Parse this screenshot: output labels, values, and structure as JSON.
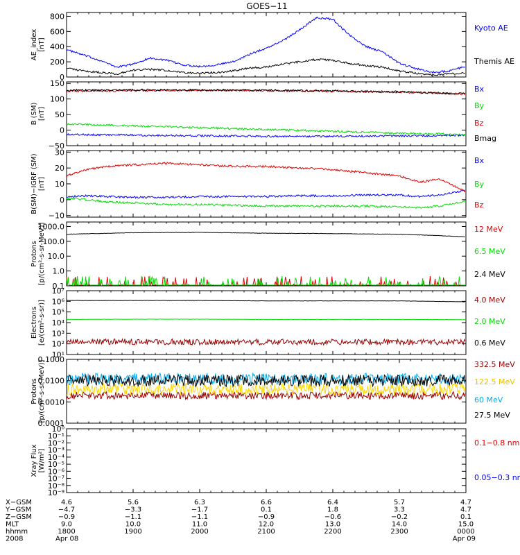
{
  "title": "GOES−11",
  "colors": {
    "black": "#000000",
    "blue": "#0000ff",
    "red": "#e00000",
    "green": "#00dd00",
    "darkred": "#990000",
    "cyan": "#00aaee",
    "yellow": "#ffd700"
  },
  "chart_data": [
    {
      "type": "line",
      "ylabel": [
        "AE_index",
        "[nT]"
      ],
      "ylim": [
        0,
        850
      ],
      "yticks": [
        {
          "v": 0,
          "l": "0"
        },
        {
          "v": 200,
          "l": "200"
        },
        {
          "v": 400,
          "l": "400"
        },
        {
          "v": 600,
          "l": "600"
        },
        {
          "v": 800,
          "l": "800"
        }
      ],
      "x": [
        0,
        0.25,
        0.5,
        0.75,
        1,
        1.25,
        1.5,
        1.75,
        2,
        2.25,
        2.5,
        2.75,
        3,
        3.25,
        3.5,
        3.75,
        4,
        4.25,
        4.5,
        4.75,
        5,
        5.25,
        5.5,
        5.75,
        6
      ],
      "series": [
        {
          "name": "Kyoto AE",
          "color": "blue",
          "values": [
            360,
            290,
            220,
            130,
            170,
            250,
            220,
            160,
            140,
            160,
            200,
            300,
            380,
            480,
            620,
            780,
            760,
            550,
            400,
            330,
            180,
            110,
            60,
            80,
            140
          ]
        },
        {
          "name": "Themis AE",
          "color": "black",
          "values": [
            120,
            80,
            60,
            40,
            90,
            100,
            90,
            60,
            50,
            60,
            80,
            120,
            130,
            170,
            200,
            230,
            220,
            180,
            150,
            130,
            80,
            50,
            30,
            40,
            60
          ]
        }
      ]
    },
    {
      "type": "line",
      "ylabel": [
        "B (SM)",
        "[nT]"
      ],
      "ylim": [
        -50,
        155
      ],
      "yticks": [
        {
          "v": -50,
          "l": "−50"
        },
        {
          "v": 0,
          "l": "0"
        },
        {
          "v": 50,
          "l": "50"
        },
        {
          "v": 100,
          "l": "100"
        },
        {
          "v": 150,
          "l": "150"
        }
      ],
      "x": [
        0,
        1,
        2,
        3,
        4,
        5,
        6
      ],
      "series": [
        {
          "name": "Bx",
          "color": "blue",
          "values": [
            -14,
            -16,
            -18,
            -20,
            -20,
            -19,
            -16
          ]
        },
        {
          "name": "By",
          "color": "green",
          "values": [
            20,
            14,
            8,
            2,
            -4,
            -10,
            -14
          ]
        },
        {
          "name": "Bz",
          "color": "red",
          "values": [
            125,
            127,
            128,
            127,
            125,
            122,
            116
          ]
        },
        {
          "name": "Bmag",
          "color": "black",
          "values": [
            128,
            129,
            129,
            128,
            126,
            123,
            117
          ]
        }
      ]
    },
    {
      "type": "line",
      "ylabel": [
        "B(SM)−IGRF (SM)",
        "[nT]"
      ],
      "ylim": [
        -11,
        31
      ],
      "yticks": [
        {
          "v": -10,
          "l": "−10"
        },
        {
          "v": 0,
          "l": "0"
        },
        {
          "v": 10,
          "l": "10"
        },
        {
          "v": 20,
          "l": "20"
        },
        {
          "v": 30,
          "l": "30"
        }
      ],
      "x": [
        0,
        0.3,
        0.6,
        1,
        1.5,
        2,
        2.5,
        3,
        3.5,
        4,
        4.5,
        5,
        5.3,
        5.6,
        6
      ],
      "series": [
        {
          "name": "Bx",
          "color": "blue",
          "values": [
            2,
            2.5,
            2,
            1.5,
            1.5,
            2,
            2,
            2,
            2.5,
            2.5,
            3,
            3,
            2,
            3,
            6
          ]
        },
        {
          "name": "By",
          "color": "green",
          "values": [
            1,
            0,
            -1.5,
            -2,
            -3,
            -3,
            -3.5,
            -4,
            -4,
            -4,
            -4,
            -4.5,
            -5,
            -4,
            -1
          ]
        },
        {
          "name": "Bz",
          "color": "red",
          "values": [
            15,
            19,
            21,
            22,
            23,
            22,
            21,
            21,
            20,
            19,
            17,
            15,
            11,
            13,
            5
          ]
        }
      ]
    },
    {
      "type": "line",
      "log": true,
      "ylabel": [
        "Protons",
        "[p/(cm²-s-sr-MeV)]"
      ],
      "ylim": [
        0.1,
        2000
      ],
      "yticks": [
        {
          "v": 0.1,
          "l": "0.1"
        },
        {
          "v": 1,
          "l": "1.0"
        },
        {
          "v": 10,
          "l": "10.0"
        },
        {
          "v": 100,
          "l": "100.0"
        },
        {
          "v": 1000,
          "l": "1000.0"
        }
      ],
      "x": [
        0,
        1,
        2,
        3,
        4,
        5,
        6
      ],
      "series": [
        {
          "name": "12 MeV",
          "color": "red",
          "values": [
            0.1,
            0.1,
            0.1,
            0.1,
            0.1,
            0.1,
            0.1
          ],
          "spikes": true
        },
        {
          "name": "6.5 MeV",
          "color": "green",
          "values": [
            0.1,
            0.1,
            0.1,
            0.1,
            0.1,
            0.1,
            0.1
          ],
          "spikes": true
        },
        {
          "name": "2.4 MeV",
          "color": "black",
          "values": [
            300,
            380,
            400,
            350,
            330,
            300,
            200
          ]
        }
      ]
    },
    {
      "type": "line",
      "log": true,
      "ylabel": [
        "Electrons",
        "[e/(cm²-s-sr)]"
      ],
      "ylim": [
        10,
        10000000
      ],
      "yticks": [
        {
          "v": 10,
          "l": "10¹"
        },
        {
          "v": 100,
          "l": "10²"
        },
        {
          "v": 1000,
          "l": "10³"
        },
        {
          "v": 10000,
          "l": "10⁴"
        },
        {
          "v": 100000,
          "l": "10⁵"
        },
        {
          "v": 1000000,
          "l": "10⁶"
        },
        {
          "v": 10000000,
          "l": "10⁷"
        }
      ],
      "x": [
        0,
        1,
        2,
        3,
        4,
        5,
        6
      ],
      "series": [
        {
          "name": "4.0 MeV",
          "color": "darkred",
          "values": [
            150,
            160,
            150,
            150,
            150,
            150,
            150
          ],
          "noise": true
        },
        {
          "name": "2.0 MeV",
          "color": "green",
          "values": [
            20000,
            21000,
            21000,
            20000,
            20000,
            20000,
            19000
          ]
        },
        {
          "name": "0.6 MeV",
          "color": "black",
          "values": [
            1200000,
            1200000,
            1200000,
            1100000,
            1100000,
            1100000,
            900000
          ]
        }
      ]
    },
    {
      "type": "line",
      "log": true,
      "ylabel": [
        "Protons",
        "[p/(cm²-s-sr-MeV)]"
      ],
      "ylim": [
        0.0001,
        0.1
      ],
      "yticks": [
        {
          "v": 0.0001,
          "l": "0.0001"
        },
        {
          "v": 0.001,
          "l": "0.0010"
        },
        {
          "v": 0.01,
          "l": "0.0100"
        },
        {
          "v": 0.1,
          "l": "0.1000"
        }
      ],
      "x": [
        0,
        1,
        2,
        3,
        4,
        5,
        6
      ],
      "series": [
        {
          "name": "332.5 MeV",
          "color": "darkred",
          "values": [
            0.002,
            0.002,
            0.002,
            0.002,
            0.002,
            0.002,
            0.002
          ],
          "noise": true
        },
        {
          "name": "122.5 MeV",
          "color": "yellow",
          "values": [
            0.004,
            0.004,
            0.004,
            0.004,
            0.004,
            0.004,
            0.004
          ],
          "noise": true
        },
        {
          "name": "60 MeV",
          "color": "cyan",
          "values": [
            0.012,
            0.012,
            0.012,
            0.012,
            0.012,
            0.012,
            0.012
          ],
          "noise": true
        },
        {
          "name": "27.5 MeV",
          "color": "black",
          "values": [
            0.01,
            0.01,
            0.01,
            0.01,
            0.01,
            0.01,
            0.01
          ],
          "noise": true
        }
      ]
    },
    {
      "type": "line",
      "log": true,
      "ylabel": [
        "Xray Flux",
        "[W/m²]"
      ],
      "ylim": [
        1e-09,
        1
      ],
      "yticks": [
        {
          "v": 1,
          "l": "10⁰"
        },
        {
          "v": 0.1,
          "l": "10⁻¹"
        },
        {
          "v": 0.01,
          "l": "10⁻²"
        },
        {
          "v": 0.001,
          "l": "10⁻³"
        },
        {
          "v": 0.0001,
          "l": "10⁻⁴"
        },
        {
          "v": 1e-05,
          "l": "10⁻⁵"
        },
        {
          "v": 1e-06,
          "l": "10⁻⁶"
        },
        {
          "v": 1e-07,
          "l": "10⁻⁷"
        },
        {
          "v": 1e-08,
          "l": "10⁻⁸"
        },
        {
          "v": 1e-09,
          "l": "10⁻⁹"
        }
      ],
      "x": [],
      "series": [
        {
          "name": "0.1−0.8 nm",
          "color": "red",
          "values": []
        },
        {
          "name": "0.05−0.3 nm",
          "color": "blue",
          "values": []
        }
      ]
    }
  ],
  "xaxis": {
    "row_labels": [
      "X−GSM",
      "Y−GSM",
      "Z−GSM",
      "MLT",
      "hhmm",
      "2008"
    ],
    "columns": [
      [
        "4.6",
        "−4.7",
        "−0.9",
        "9.0",
        "1800",
        "Apr 08"
      ],
      [
        "5.6",
        "−3.3",
        "−1.1",
        "10.0",
        "1900",
        ""
      ],
      [
        "6.3",
        "−1.7",
        "−1.1",
        "11.0",
        "2000",
        ""
      ],
      [
        "6.6",
        "0.1",
        "−0.9",
        "12.0",
        "2100",
        ""
      ],
      [
        "6.4",
        "1.8",
        "−0.6",
        "13.0",
        "2200",
        ""
      ],
      [
        "5.7",
        "3.3",
        "−0.2",
        "14.0",
        "2300",
        ""
      ],
      [
        "4.7",
        "4.7",
        "0.1",
        "15.0",
        "0000",
        "Apr 09"
      ]
    ]
  }
}
